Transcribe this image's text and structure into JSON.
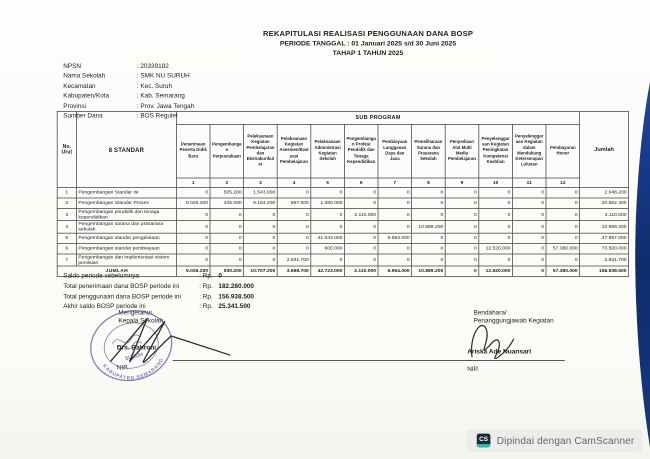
{
  "document": {
    "title_line1": "REKAPITULASI REALISASI PENGGUNAAN DANA BOSP",
    "title_line2": "PERIODE TANGGAL : 01 Januari 2025 s/d 30 Juni 2025",
    "title_line3": "TAHAP 1 TAHUN 2025"
  },
  "school_info": {
    "rows": [
      {
        "label": "NPSN",
        "value": "20339182"
      },
      {
        "label": "Nama Sekolah",
        "value": "SMK NU SURUH"
      },
      {
        "label": "Kecamatan",
        "value": "Kec. Suruh"
      },
      {
        "label": "Kabupaten/Kota",
        "value": "Kab. Semarang"
      },
      {
        "label": "Provinsi",
        "value": "Prov. Jawa Tengah"
      },
      {
        "label": "Sumber Dana",
        "value": "BOS Reguler"
      }
    ]
  },
  "table": {
    "corner_no_label": "No.\nUrut",
    "corner_standar_label": "8 STANDAR",
    "group_header": "SUB PROGRAM",
    "jumlah_header": "Jumlah",
    "columns": [
      {
        "num": "1",
        "name": "Penerimaan Peserta Didik Baru"
      },
      {
        "num": "2",
        "name": "Pengembangan Perpustakaan"
      },
      {
        "num": "3",
        "name": "Pelaksanaan Kegiatan Pembelajaran dan Ekstrakurikuler"
      },
      {
        "num": "4",
        "name": "Pelaksanaan Kegiatan Asesmen/Evaluasi Pembelajaran"
      },
      {
        "num": "5",
        "name": "Pelaksanaan Administrasi Kegiatan Sekolah"
      },
      {
        "num": "6",
        "name": "Pengembangan Profesi Pendidik dan Tenaga Kependidikan"
      },
      {
        "num": "7",
        "name": "Pembiayaan Langganan Daya dan Jasa"
      },
      {
        "num": "8",
        "name": "Pemeliharaan Sarana dan Prasarana Sekolah"
      },
      {
        "num": "9",
        "name": "Penyediaan Alat Multi Media Pembelajaran"
      },
      {
        "num": "10",
        "name": "Penyelenggaraan Kegiatan Peningkatan Kompetensi Keahlian"
      },
      {
        "num": "11",
        "name": "Penyelenggaraan Kegiatan dalam Mendukung Keterserapan Lulusan"
      },
      {
        "num": "12",
        "name": "Pembayaran Honor"
      }
    ],
    "rows": [
      {
        "no": "1",
        "label": "Pengembangan Standar Isi",
        "values": [
          "0",
          "505.200",
          "1.543.000",
          "0",
          "0",
          "0",
          "0",
          "0",
          "0",
          "0",
          "0",
          "0"
        ],
        "jumlah": "2.048.200"
      },
      {
        "no": "2",
        "label": "Pengembangan Standar Proses",
        "values": [
          "9.026.200",
          "425.000",
          "9.164.200",
          "867.000",
          "1.080.000",
          "0",
          "0",
          "0",
          "0",
          "0",
          "0",
          "0"
        ],
        "jumlah": "20.562.400"
      },
      {
        "no": "3",
        "label": "Pengembangan pendidik dan tenaga kependidikan",
        "values": [
          "0",
          "0",
          "0",
          "0",
          "0",
          "2.110.000",
          "0",
          "0",
          "0",
          "0",
          "0",
          "0"
        ],
        "jumlah": "2.110.000"
      },
      {
        "no": "4",
        "label": "Pengembangan sarana dan prasarana sekolah",
        "values": [
          "0",
          "0",
          "0",
          "0",
          "0",
          "0",
          "0",
          "10.889.200",
          "0",
          "0",
          "0",
          "0"
        ],
        "jumlah": "10.889.200"
      },
      {
        "no": "5",
        "label": "Pengembangan standar pengelolaan",
        "values": [
          "0",
          "0",
          "0",
          "0",
          "41.043.000",
          "0",
          "6.954.000",
          "0",
          "0",
          "0",
          "0",
          "0"
        ],
        "jumlah": "47.997.000"
      },
      {
        "no": "6",
        "label": "Pengembangan standar pembiayaan",
        "values": [
          "0",
          "0",
          "0",
          "0",
          "600.000",
          "0",
          "0",
          "0",
          "0",
          "12.520.000",
          "0",
          "57.380.000"
        ],
        "jumlah": "70.500.000"
      },
      {
        "no": "7",
        "label": "Pengembangan dan implementasi sistem penilaian",
        "values": [
          "0",
          "0",
          "0",
          "2.831.700",
          "0",
          "0",
          "0",
          "0",
          "0",
          "0",
          "0",
          "0"
        ],
        "jumlah": "2.831.700"
      }
    ],
    "total_row": {
      "label": "JUMLAH",
      "values": [
        "9.026.200",
        "930.200",
        "10.707.200",
        "3.698.700",
        "42.723.000",
        "2.110.000",
        "6.954.000",
        "10.889.200",
        "0",
        "12.520.000",
        "0",
        "57.380.000"
      ],
      "jumlah": "156.938.500"
    }
  },
  "summary": {
    "currency": "Rp.",
    "rows": [
      {
        "label": "Saldo periode sebelumnya",
        "value": "0"
      },
      {
        "label": "Total penerimaan dana BOSP periode ini",
        "value": "182.280.000"
      },
      {
        "label": "Total penggunaan dana BOSP periode ini",
        "value": "156.938.500"
      },
      {
        "label": "Akhir saldo BOSP periode ini",
        "value": "25.341.500"
      }
    ]
  },
  "signatures": {
    "left": {
      "line1": "Mengetahui,",
      "line2": "Kepala Sekolah",
      "name": "Drs. Bahroni",
      "nip": "NIP."
    },
    "right": {
      "line1": "Bendahara/",
      "line2": "Penanggungjawab Kegiatan",
      "name": "Ariska Ade Nuansari",
      "nip": "NIP."
    }
  },
  "stamp": {
    "arc_text": "KABUPATEN SEMARANG",
    "center_text": "SURUH",
    "color": "#5e5eab"
  },
  "edge_colors": {
    "top": "#1e47a3",
    "mid": "#0e2c6d",
    "bottom": "#16397f"
  },
  "footer_badge": {
    "icon_text": "CS",
    "text": "Dipindai dengan CamScanner",
    "accent_color": "#21c0a5",
    "icon_bg": "#1f2733"
  }
}
